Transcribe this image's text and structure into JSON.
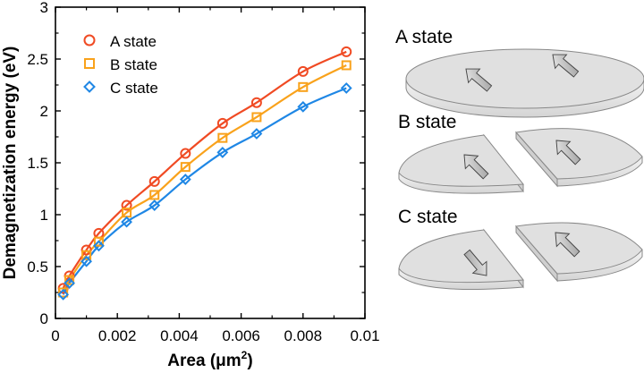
{
  "colors": {
    "A state": "#f04a23",
    "B state": "#f9a21b",
    "C state": "#1f87e5"
  },
  "chart_data": {
    "type": "line",
    "xlabel_main": "Area (μm",
    "xlabel_sup": "2",
    "xlabel_end": ")",
    "ylabel": "Demagnetization energy (eV)",
    "xlim": [
      0,
      0.01
    ],
    "ylim": [
      0,
      3
    ],
    "x_ticks": [
      "0",
      "0.002",
      "0.004",
      "0.006",
      "0.008",
      "0.01"
    ],
    "y_ticks": [
      "0",
      "0.5",
      "1",
      "1.5",
      "2",
      "2.5",
      "3"
    ],
    "legend_position": "top-left",
    "x": [
      0.00025,
      0.00045,
      0.001,
      0.0014,
      0.0023,
      0.0032,
      0.0042,
      0.0054,
      0.0065,
      0.008,
      0.0094
    ],
    "series": [
      {
        "name": "A state",
        "marker": "circle",
        "values": [
          0.29,
          0.41,
          0.66,
          0.82,
          1.09,
          1.32,
          1.59,
          1.88,
          2.08,
          2.38,
          2.57
        ]
      },
      {
        "name": "B state",
        "marker": "square",
        "values": [
          0.25,
          0.37,
          0.61,
          0.74,
          1.02,
          1.19,
          1.46,
          1.74,
          1.94,
          2.23,
          2.44
        ]
      },
      {
        "name": "C state",
        "marker": "diamond",
        "values": [
          0.23,
          0.34,
          0.55,
          0.7,
          0.93,
          1.09,
          1.34,
          1.6,
          1.78,
          2.04,
          2.22
        ]
      }
    ]
  },
  "illustration": {
    "a_label": "A state",
    "b_label": "B state",
    "c_label": "C state"
  }
}
